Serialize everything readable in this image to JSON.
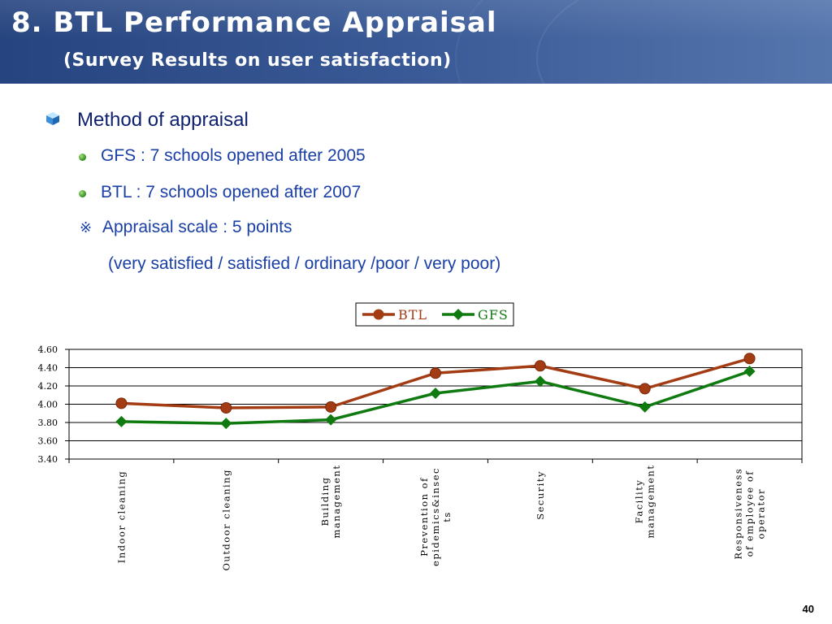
{
  "header": {
    "title": "8. BTL Performance Appraisal",
    "subtitle": "(Survey Results on user satisfaction)"
  },
  "content": {
    "method_label": "Method of appraisal",
    "bullets": [
      "GFS : 7 schools opened after 2005",
      "BTL : 7 schools opened after 2007"
    ],
    "note_mark": "※",
    "note": "Appraisal scale : 5 points",
    "scale_detail": "(very satisfied / satisfied / ordinary /poor / very poor)"
  },
  "chart_data": {
    "type": "line",
    "categories": [
      "Indoor cleaning",
      "Outdoor cleaning",
      "Building management",
      "Prevention of epidemics&insects",
      "Security",
      "Facility management",
      "Responsiveness of employee of operator"
    ],
    "category_lines": [
      [
        "Indoor cleaning"
      ],
      [
        "Outdoor cleaning"
      ],
      [
        "Building",
        "management"
      ],
      [
        "Prevention of",
        "epidemics&insec",
        "ts"
      ],
      [
        "Security"
      ],
      [
        "Facility",
        "management"
      ],
      [
        "Responsiveness",
        "of employee of",
        "operator"
      ]
    ],
    "series": [
      {
        "name": "BTL",
        "values": [
          4.01,
          3.96,
          3.97,
          4.34,
          4.42,
          4.17,
          4.5
        ],
        "color": "#a33b13",
        "marker": "circle"
      },
      {
        "name": "GFS",
        "values": [
          3.81,
          3.79,
          3.83,
          4.12,
          4.25,
          3.97,
          4.36
        ],
        "color": "#0f7a0f",
        "marker": "diamond"
      }
    ],
    "ylim": [
      3.4,
      4.6
    ],
    "yticks": [
      "3.40",
      "3.60",
      "3.80",
      "4.00",
      "4.20",
      "4.40",
      "4.60"
    ],
    "grid": true,
    "legend_position": "top-center"
  },
  "page_number": "40"
}
